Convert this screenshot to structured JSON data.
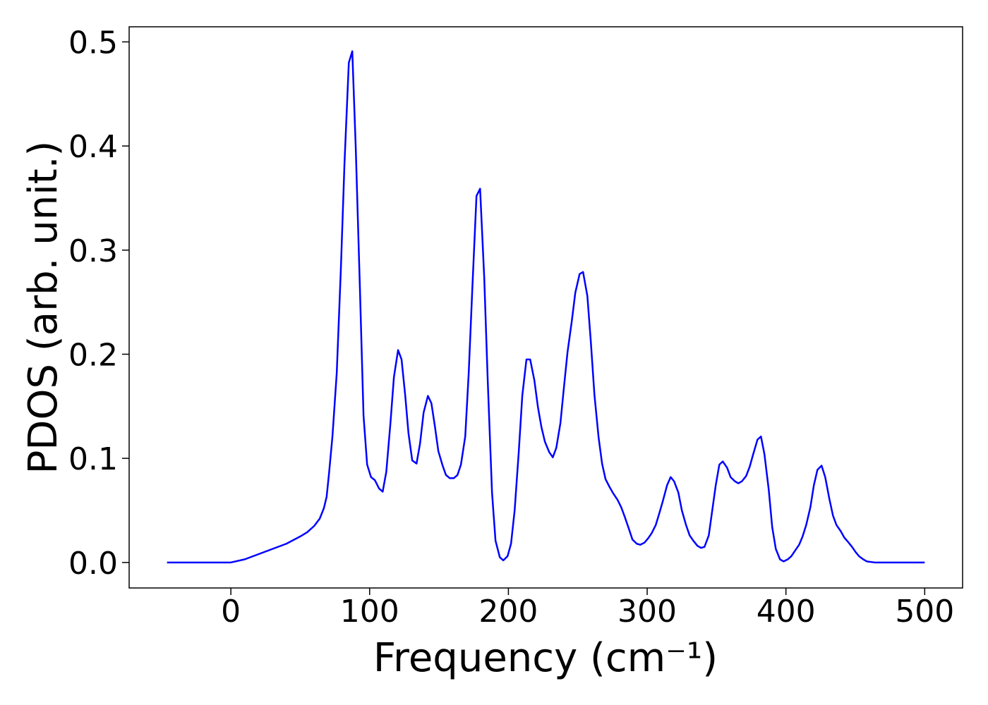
{
  "chart_data": {
    "type": "line",
    "xlabel": "Frequency (cm⁻¹)",
    "ylabel": "PDOS (arb. unit.)",
    "xlim": [
      -73.3,
      527.3
    ],
    "ylim": [
      -0.0245,
      0.5145
    ],
    "xticks": [
      0,
      100,
      200,
      300,
      400,
      500
    ],
    "yticks": [
      {
        "value": 0,
        "label": "0.0"
      },
      0.1,
      0.2,
      0.3,
      0.4,
      0.5
    ],
    "grid": false,
    "x": [
      -46,
      0,
      10,
      20,
      30,
      40,
      50,
      55,
      60,
      64,
      67,
      69,
      70.7,
      73.2,
      76.3,
      79.3,
      81.9,
      85,
      87.5,
      90,
      93,
      95.6,
      98.2,
      101,
      103.8,
      106.8,
      109.4,
      112,
      115,
      117.5,
      120.5,
      123,
      125.6,
      128,
      130.7,
      133.8,
      136.3,
      138.9,
      142,
      144.5,
      147,
      149.5,
      152.6,
      155,
      157.7,
      160.7,
      163.3,
      165.8,
      168.9,
      171.4,
      174,
      177,
      179.6,
      182.6,
      185.1,
      188.2,
      190.7,
      193.8,
      196.3,
      199.4,
      201.9,
      204.5,
      207.5,
      210,
      213,
      215.7,
      218.7,
      221.3,
      223.8,
      226.3,
      229.4,
      232,
      234.5,
      237.5,
      240,
      242.6,
      245.7,
      248.2,
      251.3,
      253.8,
      256.9,
      259.4,
      262,
      265,
      267.5,
      270,
      273.1,
      275.7,
      278.7,
      281.3,
      283.8,
      286.9,
      289.4,
      292.5,
      295,
      298,
      300.6,
      303.2,
      306.2,
      308.7,
      311.3,
      314.3,
      316.9,
      319.4,
      322.5,
      325,
      328,
      330.6,
      333.2,
      336.2,
      338.8,
      341.3,
      344.4,
      346.9,
      349.4,
      352,
      354.5,
      357.6,
      360.1,
      363.2,
      365.7,
      368.3,
      371.3,
      373.9,
      376.4,
      379.5,
      382,
      384.5,
      387.6,
      390.1,
      392.7,
      395.7,
      398.3,
      401.3,
      403.9,
      406.4,
      409.5,
      412,
      414.6,
      417.6,
      420.1,
      422.7,
      425.7,
      428.3,
      431.3,
      433.9,
      436.4,
      439.5,
      442,
      444.6,
      447.6,
      450.2,
      452.7,
      455.7,
      458.3,
      464,
      500
    ],
    "series": [
      {
        "name": "PDOS",
        "color": "#0000ff",
        "values": [
          0,
          0,
          0.003,
          0.008,
          0.013,
          0.018,
          0.025,
          0.029,
          0.035,
          0.042,
          0.052,
          0.063,
          0.085,
          0.121,
          0.182,
          0.283,
          0.384,
          0.48,
          0.491,
          0.398,
          0.263,
          0.141,
          0.094,
          0.082,
          0.079,
          0.071,
          0.068,
          0.087,
          0.134,
          0.178,
          0.204,
          0.195,
          0.161,
          0.124,
          0.098,
          0.095,
          0.114,
          0.144,
          0.16,
          0.153,
          0.131,
          0.107,
          0.093,
          0.084,
          0.081,
          0.081,
          0.084,
          0.094,
          0.121,
          0.182,
          0.263,
          0.352,
          0.359,
          0.273,
          0.175,
          0.067,
          0.021,
          0.005,
          0.002,
          0.006,
          0.018,
          0.05,
          0.107,
          0.16,
          0.195,
          0.195,
          0.175,
          0.149,
          0.13,
          0.116,
          0.106,
          0.101,
          0.11,
          0.134,
          0.168,
          0.202,
          0.232,
          0.259,
          0.277,
          0.279,
          0.256,
          0.212,
          0.161,
          0.12,
          0.095,
          0.08,
          0.072,
          0.066,
          0.06,
          0.053,
          0.044,
          0.032,
          0.022,
          0.018,
          0.017,
          0.019,
          0.023,
          0.028,
          0.036,
          0.047,
          0.059,
          0.074,
          0.082,
          0.078,
          0.067,
          0.05,
          0.036,
          0.026,
          0.021,
          0.016,
          0.014,
          0.015,
          0.026,
          0.05,
          0.074,
          0.094,
          0.097,
          0.091,
          0.082,
          0.078,
          0.076,
          0.078,
          0.083,
          0.092,
          0.104,
          0.118,
          0.121,
          0.104,
          0.07,
          0.034,
          0.013,
          0.003,
          0.001,
          0.003,
          0.006,
          0.011,
          0.017,
          0.025,
          0.036,
          0.053,
          0.074,
          0.089,
          0.093,
          0.082,
          0.061,
          0.045,
          0.036,
          0.03,
          0.024,
          0.02,
          0.015,
          0.01,
          0.006,
          0.003,
          0.001,
          0,
          0
        ]
      }
    ]
  }
}
